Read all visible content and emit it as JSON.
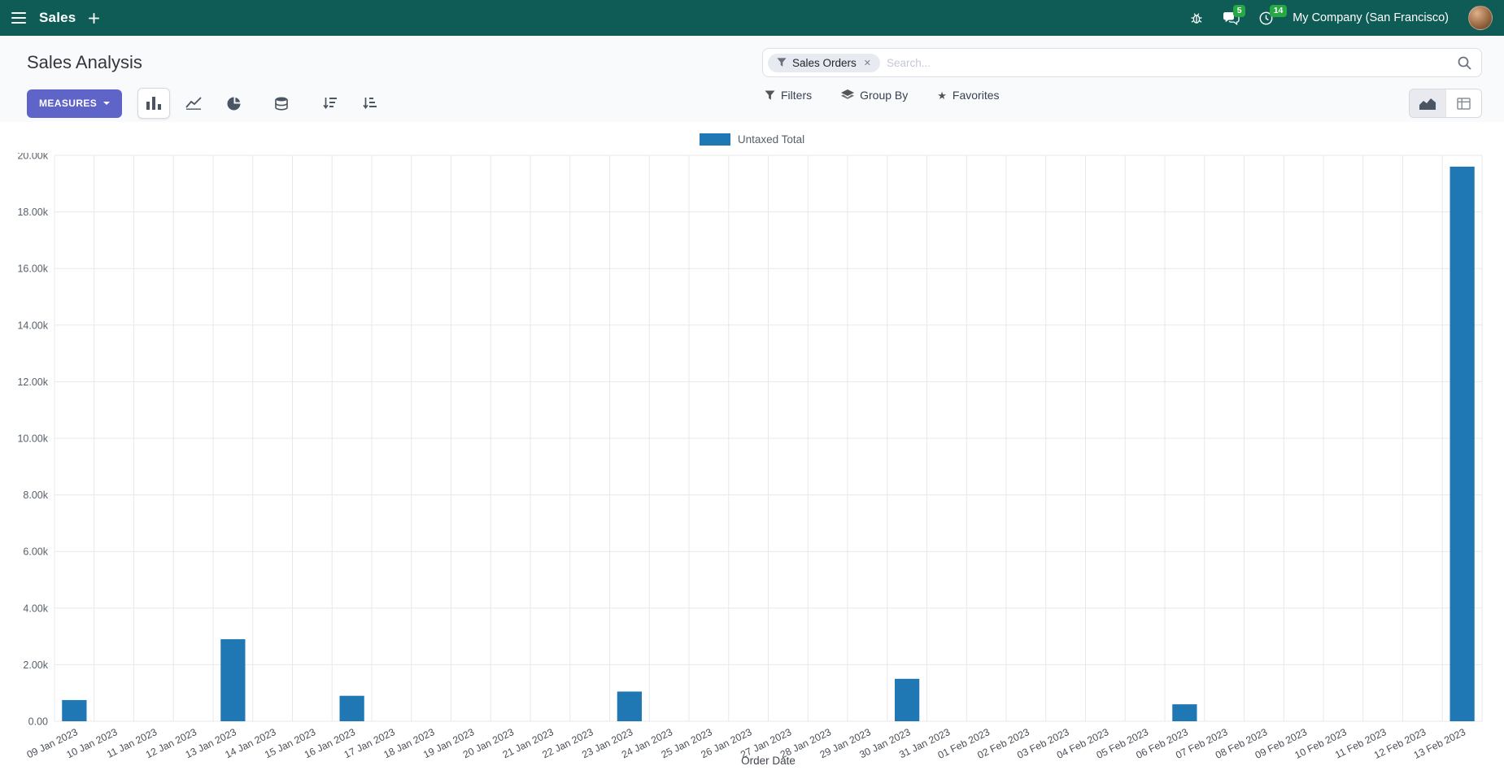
{
  "navbar": {
    "app_name": "Sales",
    "company_name": "My Company (San Francisco)",
    "messages_badge": "5",
    "activities_badge": "14"
  },
  "control_panel": {
    "title": "Sales Analysis",
    "measures_button": "MEASURES",
    "filters": "Filters",
    "group_by": "Group By",
    "favorites": "Favorites"
  },
  "search": {
    "facet_label": "Sales Orders",
    "remove_facet": "✕",
    "placeholder": "Search..."
  },
  "icons": {
    "favorites_star": "★"
  },
  "colors": {
    "navbar_bg": "#0e5c55",
    "accent": "#5e64c8",
    "badge_green": "#28a745",
    "bar_blue": "#1f77b4"
  },
  "chart_data": {
    "type": "bar",
    "title": "",
    "xlabel": "Order Date",
    "ylabel": "",
    "legend_position": "top",
    "grid": true,
    "ylim": [
      0,
      20000
    ],
    "y_tick_labels": [
      "0.00",
      "2.00k",
      "4.00k",
      "6.00k",
      "8.00k",
      "10.00k",
      "12.00k",
      "14.00k",
      "16.00k",
      "18.00k",
      "20.00k"
    ],
    "categories": [
      "09 Jan 2023",
      "10 Jan 2023",
      "11 Jan 2023",
      "12 Jan 2023",
      "13 Jan 2023",
      "14 Jan 2023",
      "15 Jan 2023",
      "16 Jan 2023",
      "17 Jan 2023",
      "18 Jan 2023",
      "19 Jan 2023",
      "20 Jan 2023",
      "21 Jan 2023",
      "22 Jan 2023",
      "23 Jan 2023",
      "24 Jan 2023",
      "25 Jan 2023",
      "26 Jan 2023",
      "27 Jan 2023",
      "28 Jan 2023",
      "29 Jan 2023",
      "30 Jan 2023",
      "31 Jan 2023",
      "01 Feb 2023",
      "02 Feb 2023",
      "03 Feb 2023",
      "04 Feb 2023",
      "05 Feb 2023",
      "06 Feb 2023",
      "07 Feb 2023",
      "08 Feb 2023",
      "09 Feb 2023",
      "10 Feb 2023",
      "11 Feb 2023",
      "12 Feb 2023",
      "13 Feb 2023"
    ],
    "series": [
      {
        "name": "Untaxed Total",
        "color": "#1f77b4",
        "values": [
          750,
          0,
          0,
          0,
          2900,
          0,
          0,
          900,
          0,
          0,
          0,
          0,
          0,
          0,
          1050,
          0,
          0,
          0,
          0,
          0,
          0,
          1500,
          0,
          0,
          0,
          0,
          0,
          0,
          600,
          0,
          0,
          0,
          0,
          0,
          0,
          19600
        ]
      }
    ]
  }
}
